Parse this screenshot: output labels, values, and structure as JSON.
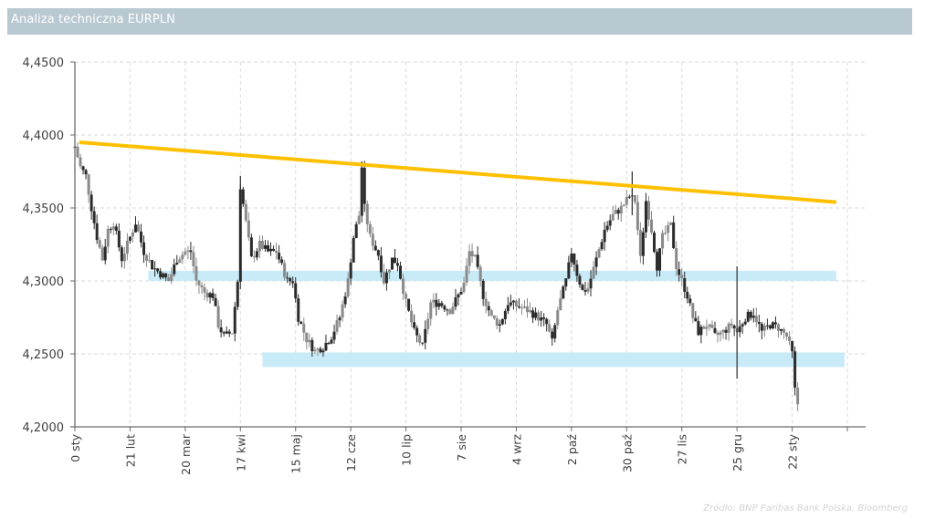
{
  "header": {
    "title": "Analiza techniczna EURPLN"
  },
  "footer": {
    "source": "Źródło:  BNP Paribas Bank Polska, Bloomberg"
  },
  "colors": {
    "title_bar": "#b9c9d2",
    "trendline": "#ffc000",
    "band": "#c9ebf7",
    "candle": "#2b2b2b",
    "candle_light": "#8a8a8a",
    "grid": "#d9d9d9",
    "axis": "#6b6b6b",
    "tick_text": "#404040"
  },
  "chart_data": {
    "type": "candlestick",
    "title": "Analiza techniczna EURPLN",
    "xlabel": "",
    "ylabel": "",
    "ylim": [
      4.2,
      4.45
    ],
    "y_ticks": [
      "4,2000",
      "4,2500",
      "4,3000",
      "4,3500",
      "4,4000",
      "4,4500"
    ],
    "y_tick_values": [
      4.2,
      4.25,
      4.3,
      4.35,
      4.4,
      4.45
    ],
    "x_ticks": [
      "0 sty",
      "21 lut",
      "20 mar",
      "17 kwi",
      "15 maj",
      "12 cze",
      "10 lip",
      "7 sie",
      "4 wrz",
      "2 paź",
      "30 paź",
      "27 lis",
      "25 gru",
      "22 sty",
      ""
    ],
    "grid": true,
    "legend": null,
    "trendline": {
      "label": "resistance trendline",
      "start": 4.395,
      "end": 4.354,
      "start_tick": 0.08,
      "end_tick": 13.8
    },
    "bands": [
      {
        "label": "support/resistance 4,30",
        "low": 4.3,
        "high": 4.307,
        "from_tick": 1.33,
        "to_tick": 13.8
      },
      {
        "label": "support 4,25",
        "low": 4.241,
        "high": 4.251,
        "from_tick": 3.4,
        "to_tick": 13.95
      }
    ],
    "series_anchor_points": [
      {
        "t": 0.0,
        "v": 4.392
      },
      {
        "t": 0.1,
        "v": 4.378
      },
      {
        "t": 0.2,
        "v": 4.372
      },
      {
        "t": 0.3,
        "v": 4.35
      },
      {
        "t": 0.4,
        "v": 4.33
      },
      {
        "t": 0.5,
        "v": 4.315
      },
      {
        "t": 0.6,
        "v": 4.335
      },
      {
        "t": 0.7,
        "v": 4.34
      },
      {
        "t": 0.85,
        "v": 4.315
      },
      {
        "t": 1.0,
        "v": 4.33
      },
      {
        "t": 1.1,
        "v": 4.34
      },
      {
        "t": 1.25,
        "v": 4.32
      },
      {
        "t": 1.4,
        "v": 4.31
      },
      {
        "t": 1.55,
        "v": 4.305
      },
      {
        "t": 1.7,
        "v": 4.3
      },
      {
        "t": 1.85,
        "v": 4.315
      },
      {
        "t": 2.0,
        "v": 4.32
      },
      {
        "t": 2.1,
        "v": 4.32
      },
      {
        "t": 2.2,
        "v": 4.3
      },
      {
        "t": 2.35,
        "v": 4.292
      },
      {
        "t": 2.5,
        "v": 4.29
      },
      {
        "t": 2.6,
        "v": 4.27
      },
      {
        "t": 2.7,
        "v": 4.262
      },
      {
        "t": 2.85,
        "v": 4.265
      },
      {
        "t": 2.95,
        "v": 4.3
      },
      {
        "t": 3.0,
        "v": 4.365
      },
      {
        "t": 3.1,
        "v": 4.34
      },
      {
        "t": 3.2,
        "v": 4.315
      },
      {
        "t": 3.35,
        "v": 4.325
      },
      {
        "t": 3.5,
        "v": 4.32
      },
      {
        "t": 3.65,
        "v": 4.32
      },
      {
        "t": 3.75,
        "v": 4.31
      },
      {
        "t": 3.85,
        "v": 4.3
      },
      {
        "t": 3.95,
        "v": 4.3
      },
      {
        "t": 4.05,
        "v": 4.275
      },
      {
        "t": 4.2,
        "v": 4.26
      },
      {
        "t": 4.35,
        "v": 4.252
      },
      {
        "t": 4.5,
        "v": 4.255
      },
      {
        "t": 4.65,
        "v": 4.262
      },
      {
        "t": 4.8,
        "v": 4.275
      },
      {
        "t": 4.95,
        "v": 4.3
      },
      {
        "t": 5.05,
        "v": 4.33
      },
      {
        "t": 5.15,
        "v": 4.345
      },
      {
        "t": 5.2,
        "v": 4.378
      },
      {
        "t": 5.25,
        "v": 4.35
      },
      {
        "t": 5.35,
        "v": 4.33
      },
      {
        "t": 5.5,
        "v": 4.318
      },
      {
        "t": 5.6,
        "v": 4.3
      },
      {
        "t": 5.75,
        "v": 4.315
      },
      {
        "t": 5.85,
        "v": 4.312
      },
      {
        "t": 6.0,
        "v": 4.285
      },
      {
        "t": 6.15,
        "v": 4.265
      },
      {
        "t": 6.3,
        "v": 4.255
      },
      {
        "t": 6.45,
        "v": 4.285
      },
      {
        "t": 6.6,
        "v": 4.285
      },
      {
        "t": 6.8,
        "v": 4.28
      },
      {
        "t": 6.95,
        "v": 4.29
      },
      {
        "t": 7.05,
        "v": 4.298
      },
      {
        "t": 7.15,
        "v": 4.32
      },
      {
        "t": 7.25,
        "v": 4.315
      },
      {
        "t": 7.4,
        "v": 4.29
      },
      {
        "t": 7.55,
        "v": 4.275
      },
      {
        "t": 7.7,
        "v": 4.27
      },
      {
        "t": 7.85,
        "v": 4.285
      },
      {
        "t": 8.0,
        "v": 4.283
      },
      {
        "t": 8.2,
        "v": 4.28
      },
      {
        "t": 8.4,
        "v": 4.275
      },
      {
        "t": 8.55,
        "v": 4.27
      },
      {
        "t": 8.65,
        "v": 4.258
      },
      {
        "t": 8.75,
        "v": 4.28
      },
      {
        "t": 8.9,
        "v": 4.3
      },
      {
        "t": 9.0,
        "v": 4.32
      },
      {
        "t": 9.1,
        "v": 4.305
      },
      {
        "t": 9.2,
        "v": 4.293
      },
      {
        "t": 9.3,
        "v": 4.295
      },
      {
        "t": 9.45,
        "v": 4.315
      },
      {
        "t": 9.6,
        "v": 4.335
      },
      {
        "t": 9.75,
        "v": 4.345
      },
      {
        "t": 9.9,
        "v": 4.35
      },
      {
        "t": 10.05,
        "v": 4.358
      },
      {
        "t": 10.15,
        "v": 4.355
      },
      {
        "t": 10.25,
        "v": 4.315
      },
      {
        "t": 10.35,
        "v": 4.355
      },
      {
        "t": 10.45,
        "v": 4.335
      },
      {
        "t": 10.55,
        "v": 4.31
      },
      {
        "t": 10.65,
        "v": 4.33
      },
      {
        "t": 10.8,
        "v": 4.338
      },
      {
        "t": 10.9,
        "v": 4.31
      },
      {
        "t": 11.0,
        "v": 4.3
      },
      {
        "t": 11.1,
        "v": 4.29
      },
      {
        "t": 11.2,
        "v": 4.275
      },
      {
        "t": 11.3,
        "v": 4.265
      },
      {
        "t": 11.45,
        "v": 4.27
      },
      {
        "t": 11.6,
        "v": 4.262
      },
      {
        "t": 11.75,
        "v": 4.265
      },
      {
        "t": 11.9,
        "v": 4.27
      },
      {
        "t": 12.0,
        "v": 4.265
      },
      {
        "t": 12.15,
        "v": 4.275
      },
      {
        "t": 12.3,
        "v": 4.278
      },
      {
        "t": 12.45,
        "v": 4.265
      },
      {
        "t": 12.6,
        "v": 4.27
      },
      {
        "t": 12.75,
        "v": 4.268
      },
      {
        "t": 12.9,
        "v": 4.262
      },
      {
        "t": 13.0,
        "v": 4.25
      },
      {
        "t": 13.05,
        "v": 4.225
      },
      {
        "t": 13.12,
        "v": 4.212
      }
    ]
  }
}
